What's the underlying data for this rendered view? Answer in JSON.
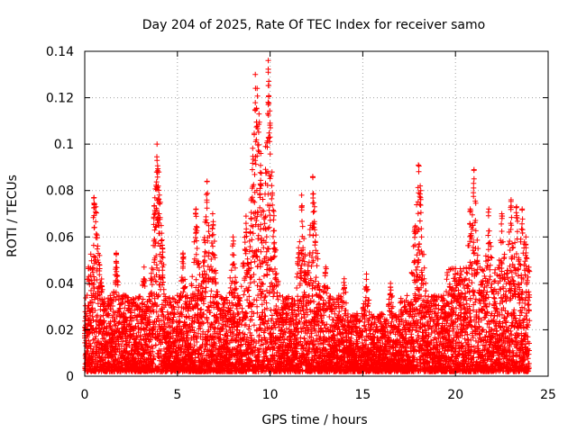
{
  "chart_data": {
    "type": "scatter",
    "title": "Day 204 of 2025, Rate Of TEC Index for receiver samo",
    "xlabel": "GPS time / hours",
    "ylabel": "ROTI / TECUs",
    "xlim": [
      0,
      25
    ],
    "ylim": [
      0,
      0.14
    ],
    "xticks": [
      0,
      5,
      10,
      15,
      20,
      25
    ],
    "xtick_labels": [
      "0",
      "5",
      "10",
      "15",
      "20",
      "25"
    ],
    "yticks": [
      0,
      0.02,
      0.04,
      0.06,
      0.08,
      0.1,
      0.12,
      0.14
    ],
    "ytick_labels": [
      "0",
      "0.02",
      "0.04",
      "0.06",
      "0.08",
      "0.1",
      "0.12",
      "0.14"
    ],
    "grid": true,
    "marker": "+",
    "color": "#ff0000",
    "series": [
      {
        "name": "samo ROTI",
        "note": "dense cloud of points at ~30 s cadence; baseline approximated as a band, peaks listed explicitly",
        "baseline_band": {
          "x_start": 0,
          "x_end": 24,
          "y_min": 0.002,
          "y_typical_max": 0.035
        },
        "peaks": [
          {
            "x": 0.2,
            "y": 0.047
          },
          {
            "x": 0.5,
            "y": 0.077
          },
          {
            "x": 0.6,
            "y": 0.073
          },
          {
            "x": 0.8,
            "y": 0.052
          },
          {
            "x": 1.7,
            "y": 0.053
          },
          {
            "x": 3.2,
            "y": 0.047
          },
          {
            "x": 3.9,
            "y": 0.1
          },
          {
            "x": 3.9,
            "y": 0.093
          },
          {
            "x": 4.0,
            "y": 0.088
          },
          {
            "x": 4.0,
            "y": 0.066
          },
          {
            "x": 4.2,
            "y": 0.047
          },
          {
            "x": 5.3,
            "y": 0.053
          },
          {
            "x": 6.0,
            "y": 0.072
          },
          {
            "x": 6.6,
            "y": 0.084
          },
          {
            "x": 6.9,
            "y": 0.07
          },
          {
            "x": 8.0,
            "y": 0.06
          },
          {
            "x": 8.7,
            "y": 0.069
          },
          {
            "x": 9.2,
            "y": 0.13
          },
          {
            "x": 9.3,
            "y": 0.124
          },
          {
            "x": 9.4,
            "y": 0.113
          },
          {
            "x": 9.5,
            "y": 0.096
          },
          {
            "x": 9.9,
            "y": 0.136
          },
          {
            "x": 9.9,
            "y": 0.131
          },
          {
            "x": 10.0,
            "y": 0.109
          },
          {
            "x": 10.1,
            "y": 0.088
          },
          {
            "x": 10.2,
            "y": 0.071
          },
          {
            "x": 11.7,
            "y": 0.078
          },
          {
            "x": 12.3,
            "y": 0.086
          },
          {
            "x": 12.4,
            "y": 0.073
          },
          {
            "x": 13.0,
            "y": 0.047
          },
          {
            "x": 14.0,
            "y": 0.042
          },
          {
            "x": 15.2,
            "y": 0.044
          },
          {
            "x": 16.5,
            "y": 0.04
          },
          {
            "x": 17.8,
            "y": 0.064
          },
          {
            "x": 18.0,
            "y": 0.091
          },
          {
            "x": 18.1,
            "y": 0.082
          },
          {
            "x": 20.8,
            "y": 0.072
          },
          {
            "x": 21.0,
            "y": 0.089
          },
          {
            "x": 21.8,
            "y": 0.072
          },
          {
            "x": 22.5,
            "y": 0.07
          },
          {
            "x": 23.0,
            "y": 0.076
          },
          {
            "x": 23.3,
            "y": 0.073
          },
          {
            "x": 23.6,
            "y": 0.072
          },
          {
            "x": 23.8,
            "y": 0.06
          }
        ]
      }
    ]
  }
}
